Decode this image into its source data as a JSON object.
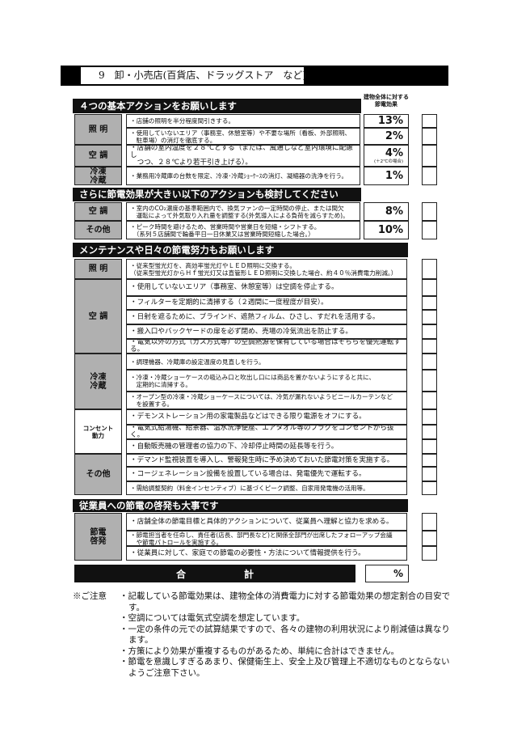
{
  "page_title": "9　卸・小売店(百貨店、ドラッグストア　など)",
  "effect_column_header": "建物全体に対する節電効果",
  "sections": [
    {
      "title": "４つの基本アクションをお願いします",
      "groups": [
        {
          "label": "照 明",
          "items": [
            {
              "text": "・店舗の照明を半分程度間引きする。",
              "effect": "13%"
            },
            {
              "text": "・使用していないエリア（事務室、休憩室等）や不要な場所（看板、外部照明、\n　駐車場）の消灯を徹底する。",
              "effect": "2%"
            }
          ]
        },
        {
          "label": "空 調",
          "items": [
            {
              "text": "・店舗の室内温度を２８℃とする（または、風通しなど室内環境に配慮し\n　つつ、２８℃より若干引き上げる）。",
              "effect": "4%",
              "effect_note": "(＋2℃の場合)",
              "big": true
            }
          ]
        },
        {
          "label": "冷凍\n冷蔵",
          "items": [
            {
              "text": "・業務用冷蔵庫の台数を限定、冷凍･冷蔵ｼｮｰｹｰｽの消灯、凝縮器の洗浄を行う。",
              "effect": "1%"
            }
          ]
        }
      ]
    },
    {
      "title": "さらに節電効果が大きい以下のアクションも検討してください",
      "groups": [
        {
          "label": "空 調",
          "items": [
            {
              "text": "・室内のCO₂濃度の基準範囲内で、換気ファンの一定時間の停止、または間欠\n　運転によって外気取り入れ量を調整する(外気導入による負荷を減らすため)。",
              "effect": "8%"
            }
          ]
        },
        {
          "label": "その他",
          "items": [
            {
              "text": "・ピーク時間を避けるため、営業時間や営業日を短縮・シフトする。\n　（系列５店舗間で輪番平日一日休業又は営業時間短縮した場合。）",
              "effect": "10%"
            }
          ]
        }
      ]
    },
    {
      "title": "メンテナンスや日々の節電努力もお願いします",
      "groups": [
        {
          "label": "照 明",
          "items": [
            {
              "text": "・従来型蛍光灯を、高効率蛍光灯やＬＥＤ照明に交換する。\n（従来型蛍光灯からＨｆ蛍光灯又は直管形ＬＥＤ照明に交換した場合、約４０％消費電力削減。）"
            }
          ]
        },
        {
          "label": "空 調",
          "items": [
            {
              "text": "・使用していないエリア（事務室、休憩室等）は空調を停止する。",
              "big": true
            },
            {
              "text": "・フィルターを定期的に清掃する（２週間に一度程度が目安）。",
              "big": true
            },
            {
              "text": "・日射を遮るために、ブラインド、遮熱フィルム、ひさし、すだれを活用する。",
              "big": true
            },
            {
              "text": "・搬入口やバックヤードの扉を必ず閉め、売場の冷気流出を防止する。",
              "big": true
            },
            {
              "text": "・電気以外の方式（ガス方式等）の空調熱源を保有している場合はそちらを優先運転する。",
              "big": true
            }
          ]
        },
        {
          "label": "冷凍\n冷蔵",
          "items": [
            {
              "text": "・調理機器、冷蔵庫の設定温度の見直しを行う。"
            },
            {
              "text": "・冷凍・冷蔵ショーケースの吸込み口と吹出し口には商品を置かないようにすると共に、\n　定期的に清掃する。"
            },
            {
              "text": "・オープン型の冷凍・冷蔵ショーケースについては、冷気が漏れないようビニールカーテンなど\n　を設置する。"
            }
          ]
        },
        {
          "label": "コンセント\n動力",
          "white": true,
          "items": [
            {
              "text": "・デモンストレーション用の家電製品などはできる限り電源をオフにする。",
              "big": true
            },
            {
              "text": "・電気式給湯機、給茶器、温水洗浄便座、エアタオル等のプラグをコンセントから抜く。",
              "big": true
            },
            {
              "text": "・自動販売機の管理者の協力の下、冷却停止時間の延長等を行う。",
              "big": true
            }
          ]
        },
        {
          "label": "その他",
          "items": [
            {
              "text": "・デマンド監視装置を導入し、警報発生時に予め決めておいた節電対策を実施する。",
              "big": true
            },
            {
              "text": "・コージェネレーション設備を設置している場合は、発電優先で運転する。",
              "big": true
            },
            {
              "text": "・需給調整契約（料金インセンティブ）に基づくピーク調整、自家用発電機の活用等。"
            }
          ]
        }
      ]
    },
    {
      "title": "従業員への節電の啓発も大事です",
      "groups": [
        {
          "label": "節電\n啓発",
          "items": [
            {
              "text": "・店舗全体の節電目標と具体的アクションについて、従業員へ理解と協力を求める。",
              "big": true
            },
            {
              "text": "・節電担当者を任命し、責任者(店長、部門長など)と関係全部門が出席したフォローアップ会議\n　や節電パトロールを実施する。"
            },
            {
              "text": "・従業員に対して、家庭での節電の必要性・方法について情報提供を行う。",
              "big": true
            }
          ]
        }
      ]
    }
  ],
  "total": {
    "label_left": "合",
    "label_right": "計",
    "unit": "%"
  },
  "notes": {
    "label": "※ご注意",
    "items": [
      "・記載している節電効果は、建物全体の消費電力に対する節電効果の想定割合の目安です。",
      "・空調については電気式空調を想定しています。",
      "・一定の条件の元での試算結果ですので、各々の建物の利用状況により削減値は異なります。",
      "・方策により効果が重複するものがあるため、単純に合計はできません。",
      "・節電を意識しすぎるあまり、保健衛生上、安全上及び管理上不適切なものとならないようご注意下さい。"
    ]
  }
}
